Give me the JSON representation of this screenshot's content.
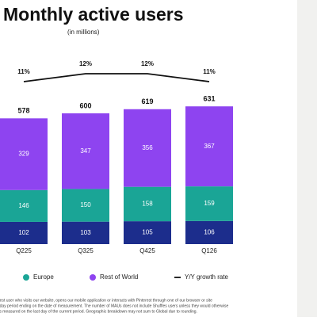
{
  "chart_data": {
    "type": "stacked-bar-line",
    "title": "Monthly active users",
    "subtitle": "(in millions)",
    "categories": [
      "Q225",
      "Q325",
      "Q425",
      "Q126"
    ],
    "totals": [
      578,
      600,
      619,
      631
    ],
    "series": [
      {
        "color": "#1c2d8c",
        "values": [
          102,
          103,
          105,
          106
        ]
      },
      {
        "name": "Europe",
        "color": "#1aa596",
        "values": [
          146,
          150,
          158,
          159
        ]
      },
      {
        "name": "Rest of World",
        "color": "#8e44f0",
        "values": [
          329,
          347,
          356,
          367
        ]
      }
    ],
    "line": {
      "name": "Y/Y growth rate",
      "color": "#111111",
      "values": [
        11,
        12,
        12,
        11
      ],
      "value_labels": [
        "11%",
        "12%",
        "12%",
        "11%"
      ]
    },
    "footnote": [
      "rest user who visits our website, opens our mobile application or interacts with Pinterest through one of our browser or site",
      "-day period ending on the date of measurement. The number of MAUs does not include Shuffles users unless they would otherwise",
      "ts measured on the last day of the current period. Geographic breakdown may not sum to Global due to rounding."
    ]
  }
}
